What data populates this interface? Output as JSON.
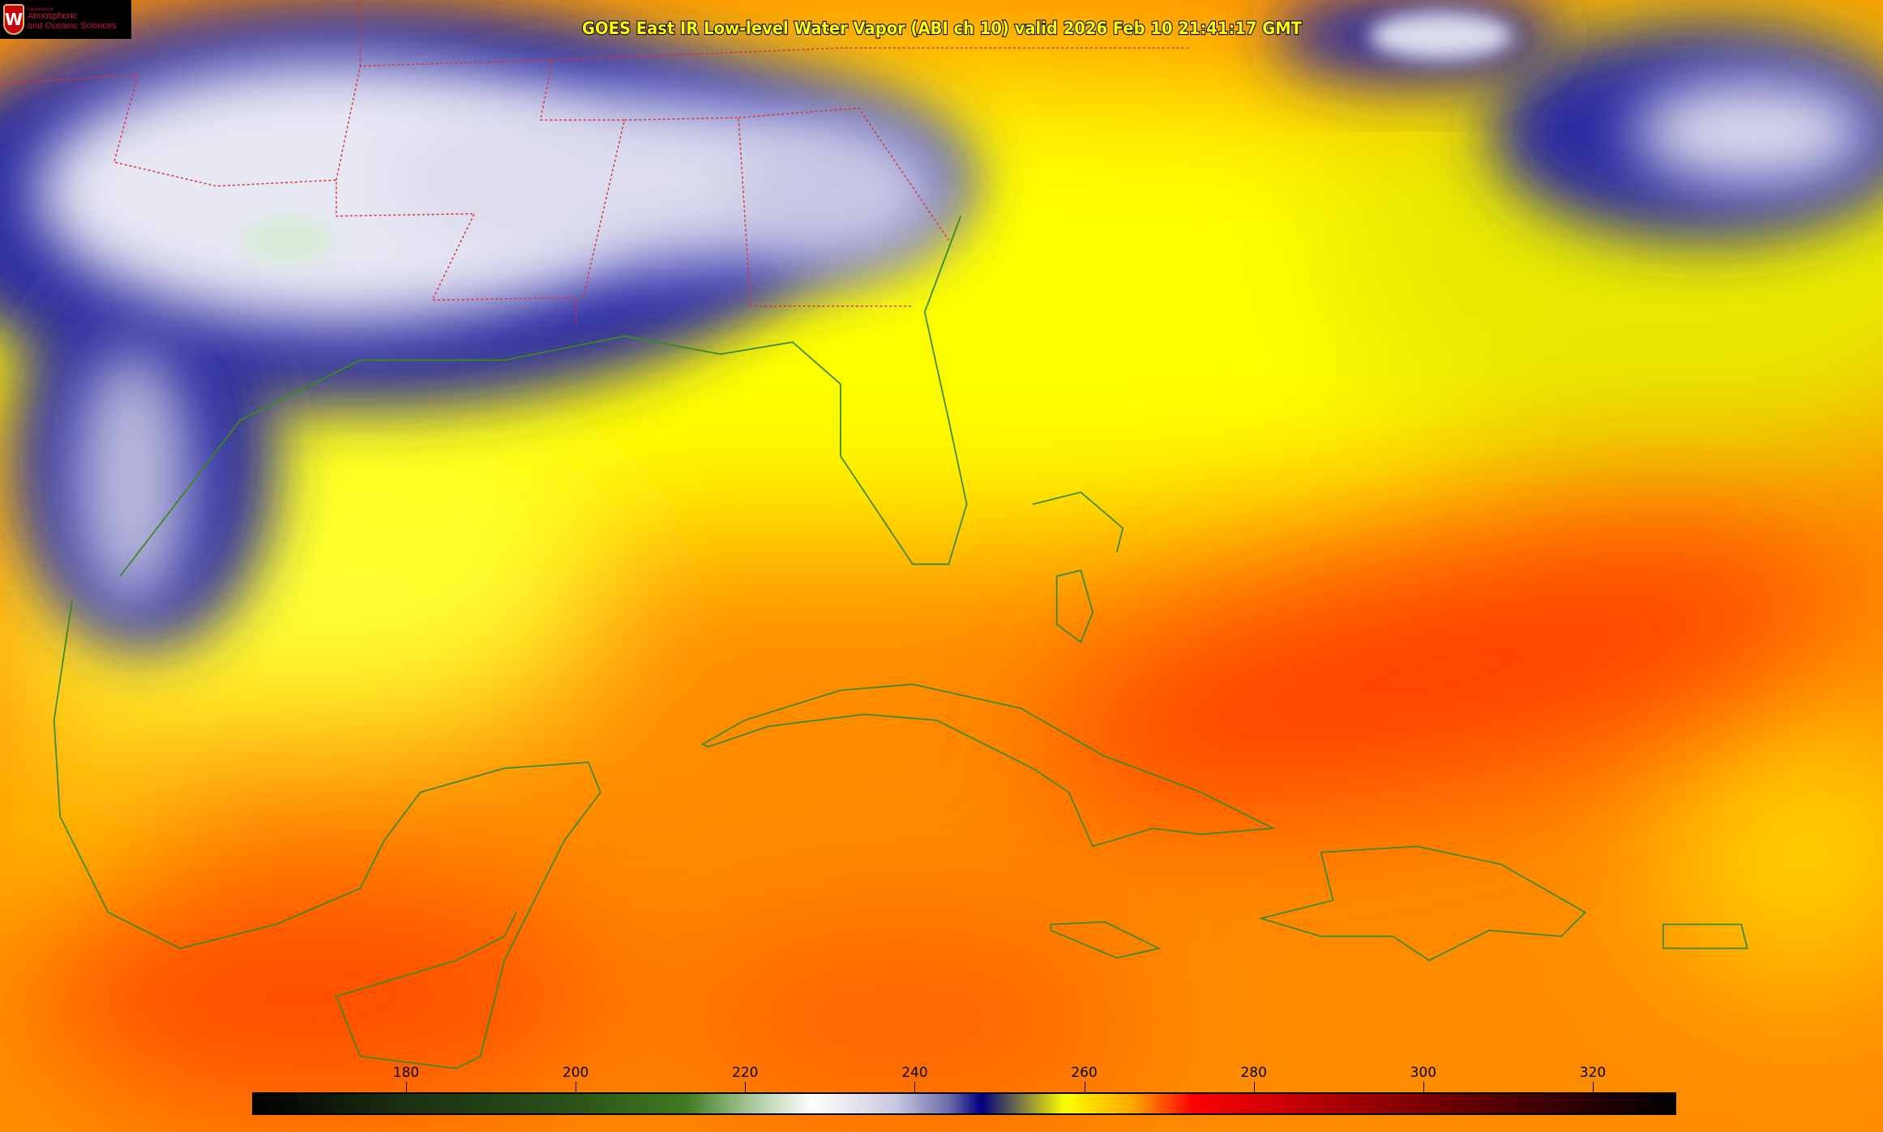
{
  "title": "GOES East IR Low-level Water Vapor (ABI ch 10) valid 2026 Feb 10 21:41:17 GMT",
  "logo": {
    "line1": "Department of",
    "line2": "Atmospheric",
    "line3": "and Oceanic Sciences",
    "emblem": "W"
  },
  "colorbar": {
    "ticks": [
      "180",
      "200",
      "220",
      "240",
      "260",
      "280",
      "300",
      "320"
    ],
    "colors": {
      "cold": "#000000",
      "green": "#3f7a20",
      "white": "#ffffff",
      "navy": "#000080",
      "yellow": "#ffff00",
      "orange": "#ffa500",
      "red": "#ff0000",
      "darkred": "#500000"
    }
  },
  "colors": {
    "coastline": "#3a8a1a",
    "state_borders": "#e03030",
    "title_text": "#ffff00"
  }
}
